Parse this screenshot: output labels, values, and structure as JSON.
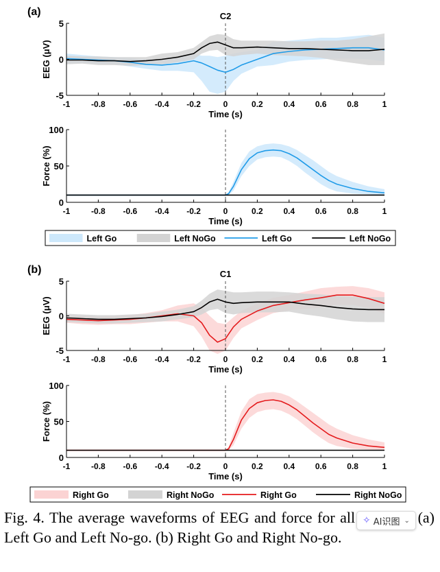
{
  "caption": "Fig. 4. The average waveforms of EEG and force for all subjects. (a) Left Go and Left No-go. (b) Right Go and Right No-go.",
  "ai_widget": {
    "label": "AI识图",
    "icon": "sparkle-icon",
    "chevron": "⌄"
  },
  "colors": {
    "left_go": "#1f9be8",
    "left_go_fill": "#cde8fb",
    "nogo": "#000000",
    "nogo_fill": "#d3d3d3",
    "right_go": "#e41a1c",
    "right_go_fill": "#fbd3d3"
  },
  "panels": [
    {
      "label": "(a)",
      "legend": [
        "Left Go",
        "Left NoGo",
        "Left Go",
        "Left NoGo"
      ],
      "charts": [
        {
          "type": "line",
          "annotation": "C2",
          "xlabel": "Time (s)",
          "ylabel": "EEG (μV)",
          "xlim": [
            -1,
            1
          ],
          "ylim": [
            -5,
            5
          ],
          "xticks": [
            "-1",
            "-0.8",
            "-0.6",
            "-0.4",
            "-0.2",
            "0",
            "0.2",
            "0.4",
            "0.6",
            "0.8",
            "1"
          ],
          "yticks": [
            "-5",
            "0",
            "5"
          ],
          "x": [
            -1,
            -0.9,
            -0.8,
            -0.7,
            -0.6,
            -0.5,
            -0.4,
            -0.3,
            -0.2,
            -0.15,
            -0.1,
            -0.05,
            0,
            0.05,
            0.1,
            0.2,
            0.3,
            0.4,
            0.5,
            0.6,
            0.7,
            0.8,
            0.9,
            1
          ],
          "series": [
            {
              "name": "Left Go",
              "color": "#1f9be8",
              "fill": "#cde8fb",
              "values": [
                0.1,
                0,
                -0.1,
                -0.2,
                -0.4,
                -0.7,
                -0.8,
                -0.6,
                -0.2,
                -0.5,
                -1,
                -1.5,
                -1.8,
                -1.4,
                -0.8,
                0,
                0.8,
                1.1,
                1.3,
                1.4,
                1.5,
                1.6,
                1.6,
                1.3
              ],
              "upper": [
                0.8,
                0.6,
                0.4,
                0.3,
                0.2,
                0,
                0,
                0.2,
                0.8,
                0.5,
                0.5,
                0.3,
                0.5,
                0.8,
                1,
                1.3,
                2.4,
                2.6,
                2.8,
                3,
                3,
                3.2,
                3.4,
                3
              ],
              "lower": [
                -0.6,
                -0.5,
                -0.6,
                -0.7,
                -1,
                -1.3,
                -1.6,
                -1.6,
                -1.8,
                -3,
                -4.5,
                -4.8,
                -4.5,
                -3,
                -2,
                -1,
                -0.8,
                -0.3,
                -0.1,
                0,
                0.1,
                0.1,
                0,
                -0.3
              ]
            },
            {
              "name": "Left NoGo",
              "color": "#000000",
              "fill": "#d3d3d3",
              "values": [
                -0.1,
                -0.1,
                -0.2,
                -0.2,
                -0.3,
                -0.2,
                0,
                0.3,
                0.8,
                1.6,
                2.2,
                2.4,
                2,
                1.6,
                1.6,
                1.7,
                1.6,
                1.5,
                1.5,
                1.4,
                1.3,
                1.2,
                1.2,
                1.4
              ],
              "upper": [
                0.5,
                0.4,
                0.4,
                0.3,
                0.3,
                0.3,
                0.8,
                1,
                1.6,
                2.4,
                3.2,
                3.5,
                3.4,
                2.8,
                2.6,
                2.6,
                2.6,
                2.5,
                2.5,
                2.6,
                2.6,
                2.8,
                3.2,
                3.6
              ],
              "lower": [
                -0.7,
                -0.6,
                -0.8,
                -0.8,
                -0.9,
                -0.8,
                -0.7,
                -0.4,
                0,
                0.8,
                1.2,
                1.3,
                0.6,
                0.4,
                0.6,
                0.8,
                0.6,
                0.5,
                0.4,
                0.2,
                -0.2,
                -0.5,
                -0.8,
                -0.8
              ]
            }
          ]
        },
        {
          "type": "line",
          "xlabel": "Time (s)",
          "ylabel": "Force (%)",
          "xlim": [
            -1,
            1
          ],
          "ylim": [
            0,
            100
          ],
          "xticks": [
            "-1",
            "-0.8",
            "-0.6",
            "-0.4",
            "-0.2",
            "0",
            "0.2",
            "0.4",
            "0.6",
            "0.8",
            "1"
          ],
          "yticks": [
            "0",
            "50",
            "100"
          ],
          "x": [
            -1,
            -0.5,
            0,
            0.02,
            0.05,
            0.1,
            0.15,
            0.2,
            0.25,
            0.3,
            0.35,
            0.4,
            0.45,
            0.5,
            0.55,
            0.6,
            0.65,
            0.7,
            0.8,
            0.9,
            1
          ],
          "series": [
            {
              "name": "Left Go",
              "color": "#1f9be8",
              "fill": "#cde8fb",
              "values": [
                10,
                10,
                10,
                12,
                22,
                45,
                60,
                68,
                71,
                72,
                71,
                67,
                61,
                53,
                45,
                37,
                30,
                25,
                19,
                15,
                13
              ],
              "upper": [
                10,
                10,
                10,
                14,
                28,
                54,
                70,
                77,
                80,
                81,
                80,
                77,
                72,
                65,
                58,
                50,
                42,
                36,
                28,
                22,
                18
              ],
              "lower": [
                10,
                10,
                10,
                10,
                16,
                36,
                50,
                59,
                62,
                63,
                62,
                57,
                50,
                41,
                33,
                25,
                19,
                15,
                12,
                11,
                10
              ]
            },
            {
              "name": "Left NoGo",
              "color": "#000000",
              "values": [
                10,
                10,
                10,
                10,
                10,
                10,
                10,
                10,
                10,
                10,
                10,
                10,
                10,
                10,
                10,
                10,
                10,
                10,
                10,
                10,
                10
              ]
            }
          ]
        }
      ]
    },
    {
      "label": "(b)",
      "legend": [
        "Right Go",
        "Right NoGo",
        "Right Go",
        "Right NoGo"
      ],
      "charts": [
        {
          "type": "line",
          "annotation": "C1",
          "xlabel": "Time (s)",
          "ylabel": "EEG (μV)",
          "xlim": [
            -1,
            1
          ],
          "ylim": [
            -5,
            5
          ],
          "xticks": [
            "-1",
            "-0.8",
            "-0.6",
            "-0.4",
            "-0.2",
            "0",
            "0.2",
            "0.4",
            "0.6",
            "0.8",
            "1"
          ],
          "yticks": [
            "-5",
            "0",
            "5"
          ],
          "x": [
            -1,
            -0.9,
            -0.8,
            -0.7,
            -0.6,
            -0.5,
            -0.4,
            -0.3,
            -0.2,
            -0.15,
            -0.1,
            -0.05,
            0,
            0.05,
            0.1,
            0.2,
            0.3,
            0.4,
            0.5,
            0.6,
            0.7,
            0.8,
            0.9,
            1
          ],
          "series": [
            {
              "name": "Right Go",
              "color": "#e41a1c",
              "fill": "#fbd3d3",
              "values": [
                -0.5,
                -0.6,
                -0.7,
                -0.6,
                -0.5,
                -0.3,
                0,
                0.3,
                0,
                -1,
                -2.8,
                -3.8,
                -3.3,
                -1.6,
                -0.5,
                0.7,
                1.5,
                1.9,
                2.3,
                2.6,
                3,
                3,
                2.5,
                1.8
              ],
              "upper": [
                0,
                0,
                -0.1,
                0,
                0.1,
                0.4,
                0.8,
                1.5,
                1.8,
                1.2,
                0,
                -1,
                -1.2,
                -0.2,
                0.7,
                1.8,
                2.6,
                3,
                3.5,
                4,
                4.2,
                4.3,
                4,
                3.4
              ],
              "lower": [
                -1,
                -1.2,
                -1.3,
                -1.2,
                -1.2,
                -1,
                -0.8,
                -0.8,
                -1.5,
                -3,
                -5,
                -5.5,
                -5,
                -3.2,
                -1.8,
                -0.6,
                0.4,
                0.8,
                1,
                1.2,
                1.6,
                1.6,
                1.1,
                0.3
              ]
            },
            {
              "name": "Right NoGo",
              "color": "#000000",
              "fill": "#d3d3d3",
              "values": [
                -0.3,
                -0.4,
                -0.5,
                -0.5,
                -0.4,
                -0.3,
                -0.1,
                0.2,
                0.6,
                1.2,
                2,
                2.4,
                2,
                1.8,
                1.9,
                2,
                2,
                2,
                1.7,
                1.5,
                1.2,
                1,
                0.9,
                0.9
              ],
              "upper": [
                0.3,
                0.2,
                0.1,
                0.1,
                0.2,
                0.3,
                0.6,
                0.9,
                1.4,
                2.2,
                3.2,
                3.8,
                3.6,
                3.4,
                3.4,
                3.5,
                3.5,
                3.4,
                3.2,
                3.1,
                2.9,
                2.8,
                2.7,
                2.7
              ],
              "lower": [
                -0.9,
                -1,
                -1.1,
                -1.1,
                -1,
                -0.9,
                -0.8,
                -0.5,
                -0.2,
                0.2,
                0.8,
                1,
                0.4,
                0.2,
                0.4,
                0.5,
                0.5,
                0.6,
                0.2,
                -0.1,
                -0.5,
                -0.8,
                -0.9,
                -0.9
              ]
            }
          ]
        },
        {
          "type": "line",
          "xlabel": "Time (s)",
          "ylabel": "Force (%)",
          "xlim": [
            -1,
            1
          ],
          "ylim": [
            0,
            100
          ],
          "xticks": [
            "-1",
            "-0.8",
            "-0.6",
            "-0.4",
            "-0.2",
            "0",
            "0.2",
            "0.4",
            "0.6",
            "0.8",
            "1"
          ],
          "yticks": [
            "0",
            "50",
            "100"
          ],
          "x": [
            -1,
            -0.5,
            0,
            0.02,
            0.05,
            0.1,
            0.15,
            0.2,
            0.25,
            0.3,
            0.35,
            0.4,
            0.45,
            0.5,
            0.55,
            0.6,
            0.65,
            0.7,
            0.8,
            0.9,
            1
          ],
          "series": [
            {
              "name": "Right Go",
              "color": "#e41a1c",
              "fill": "#fbd3d3",
              "values": [
                10,
                10,
                10,
                12,
                25,
                52,
                68,
                76,
                79,
                80,
                78,
                73,
                66,
                57,
                48,
                40,
                32,
                27,
                20,
                16,
                14
              ],
              "upper": [
                10,
                10,
                10,
                15,
                34,
                64,
                81,
                88,
                90,
                91,
                89,
                85,
                78,
                70,
                62,
                54,
                46,
                40,
                31,
                25,
                21
              ],
              "lower": [
                10,
                10,
                10,
                10,
                17,
                40,
                55,
                63,
                66,
                67,
                65,
                60,
                53,
                44,
                35,
                27,
                20,
                16,
                12,
                11,
                10
              ]
            },
            {
              "name": "Right NoGo",
              "color": "#000000",
              "values": [
                10,
                10,
                10,
                10,
                10,
                10,
                10,
                10,
                10,
                10,
                10,
                10,
                10,
                10,
                10,
                10,
                10,
                10,
                10,
                10,
                10
              ]
            }
          ]
        }
      ]
    }
  ]
}
